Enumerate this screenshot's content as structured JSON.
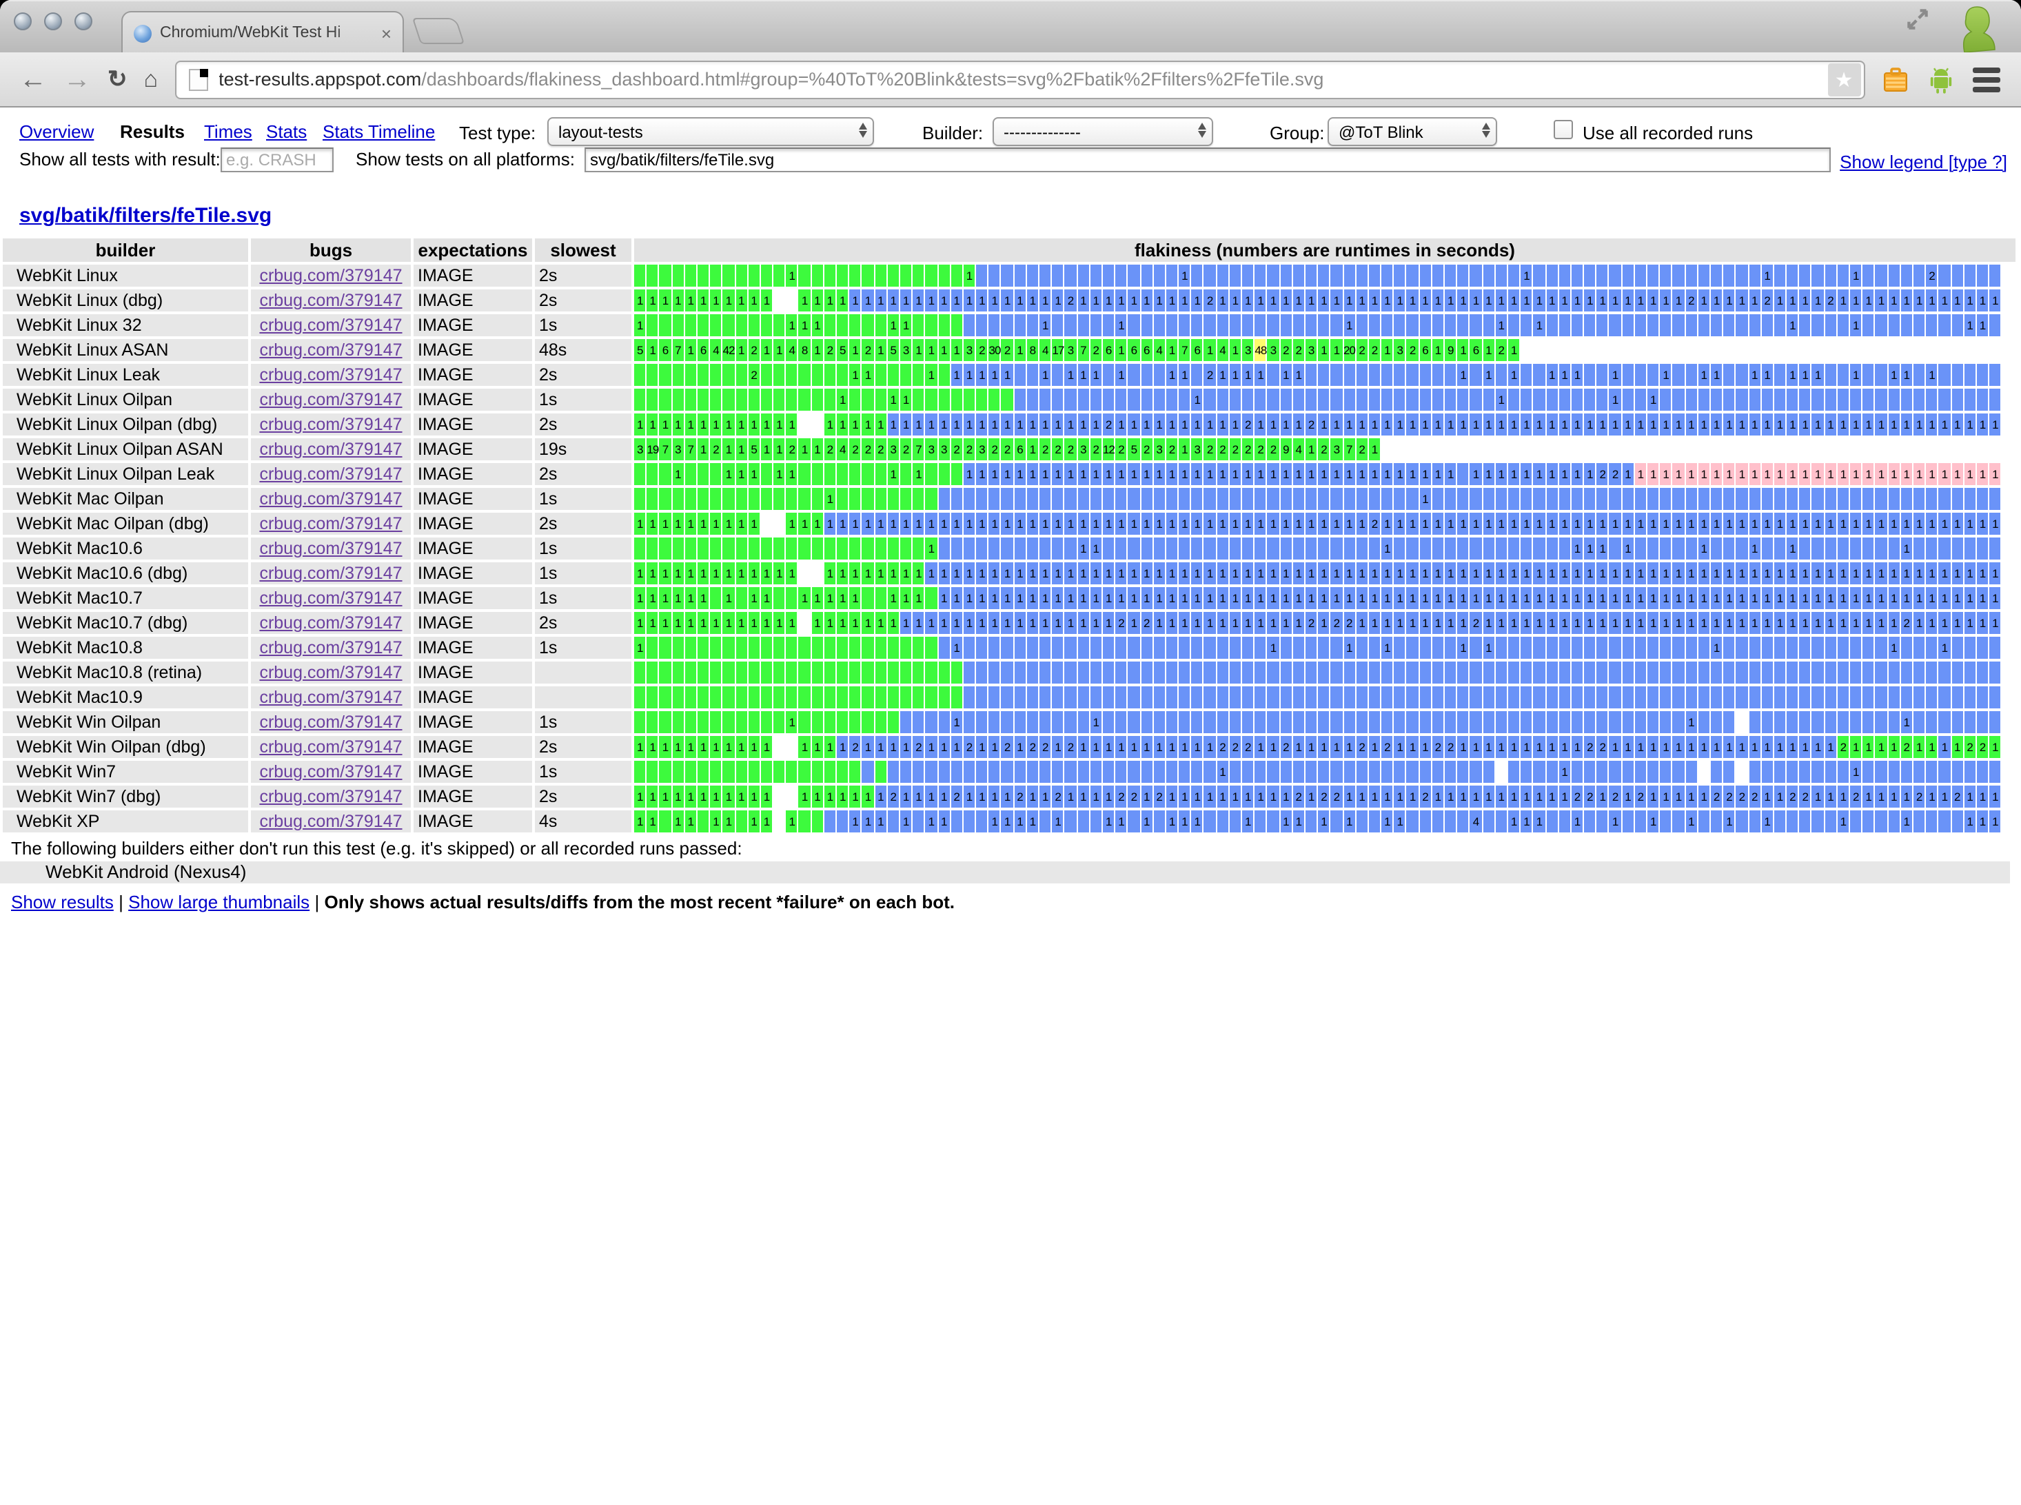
{
  "browser": {
    "tab_title": "Chromium/WebKit Test Hi",
    "tab_close": "×",
    "url_host": "test-results.appspot.com",
    "url_path": "/dashboards/flakiness_dashboard.html#group=%40ToT%20Blink&tests=svg%2Fbatik%2Ffilters%2FfeTile.svg",
    "star_glyph": "★"
  },
  "nav": {
    "items": [
      {
        "label": "Overview"
      },
      {
        "label": "Results"
      },
      {
        "label": "Times"
      },
      {
        "label": "Stats"
      },
      {
        "label": "Stats Timeline"
      }
    ]
  },
  "controls": {
    "test_type_label": "Test type:",
    "test_type_value": "layout-tests",
    "builder_label": "Builder:",
    "builder_value": "--------------",
    "group_label": "Group:",
    "group_value": "@ToT Blink",
    "use_all_label": "Use all recorded runs",
    "filter_label": "Show all tests with result:",
    "filter_placeholder": "e.g. CRASH",
    "platforms_label": "Show tests on all platforms:",
    "platforms_value": "svg/batik/filters/feTile.svg",
    "legend_link": "Show legend [type ?]"
  },
  "page": {
    "title": "svg/batik/filters/feTile.svg"
  },
  "table": {
    "headers": [
      "builder",
      "bugs",
      "expectations",
      "slowest run",
      "flakiness (numbers are runtimes in seconds)"
    ],
    "bug_link": "crbug.com/379147",
    "colors": {
      "g": "#3dfa3d",
      "b": "#6a93f8",
      "p": "#ffc0cb",
      "y": "#fffc6c",
      "w": "transparent"
    },
    "rows": [
      {
        "builder": "WebKit Linux",
        "expectations": "IMAGE",
        "slowest": "2s",
        "cells": "g*12 g:1 g*13 g:1 b b*15 b:1 b*24 b*2 b:1 b*18 b:1 b*6 b:1 b*5 b:2 b*5"
      },
      {
        "builder": "WebKit Linux (dbg)",
        "expectations": "IMAGE",
        "slowest": "2s",
        "cells": "g:1*11 w*2 g:1*4 b:1*11 b:1*6 b:2 b:1*10 b:2 b:1*22 b:1*15 b:2 b:1*5 b:2 b:1*4 b:2 b:1*13"
      },
      {
        "builder": "WebKit Linux 32",
        "expectations": "IMAGE",
        "slowest": "1s",
        "cells": "g:1 g*11 g:1*3 g*5 g:1*2 g*4 b*6 b:1 b*5 b:1 b*17 b:1 b*11 b:1 b*2 b:1 b*19 b:1 b*4 b:1 b*8 b:1*2 b"
      },
      {
        "builder": "WebKit Linux ASAN",
        "expectations": "IMAGE",
        "slowest": "48s",
        "cells": "g:5 g:1 g:6 g:7 g:1 g:6 g:4 g:42 g:1 g:2 g:1 g:1 g:4 g:8 g:1 g:2 g:5 g:1 g:2 g:1 g:5 g:3 g:1 g:1 g:1 g:1 g:3 g:2 g:30 g:2 g:1 g:8 g:4 g:17 g:3 g:7 g:2 g:6 g:1 g:6 g:6 g:4 g:1 g:7 g:6 g:1 g:4 g:1 g:3 y:48 g:3 g:2 g:2 g:3 g:1 g:1 g:20 g:2 g:2 g:1 g:3 g:2 g:6 g:1 g:9 g:1 g:6 g:1 g:2 g:1 w*38"
      },
      {
        "builder": "WebKit Linux Leak",
        "expectations": "IMAGE",
        "slowest": "2s",
        "cells": "g*9 g:2 g*7 g:1*2 g*4 g:1 g b:1*5 b*2 b:1 b b:1*3 b b:1 b*3 b:1*2 b b:2 b:1*4 b b:1*2 b*12 b:1 b b:1 b b:1 b*2 b:1*3 b*2 b:1 b*3 b:1 b*2 b:1*2 b*2 b:1*2 b b:1*3 b*2 b:1 b*2 b:1*2 b b:1 b*5"
      },
      {
        "builder": "WebKit Linux Oilpan",
        "expectations": "IMAGE",
        "slowest": "1s",
        "cells": "g*16 g:1 g*3 g:1*2 g*8 b*14 b:1 b*23 b:1 b*8 b:1 b*2 b:1 b*27"
      },
      {
        "builder": "WebKit Linux Oilpan (dbg)",
        "expectations": "IMAGE",
        "slowest": "2s",
        "cells": "g:1*13 w*2 g:1*5 b:1*17 b:2 b:1*10 b:2 b:1*4 b:2 b:1*54"
      },
      {
        "builder": "WebKit Linux Oilpan ASAN",
        "expectations": "IMAGE",
        "slowest": "19s",
        "cells": "g:3 g:19 g:7 g:3 g:7 g:1 g:2 g:1 g:1 g:5 g:1 g:1 g:2 g:1 g:1 g:2 g:4 g:2 g:2 g:2 g:3 g:2 g:7 g:3 g:3 g:2 g:2 g:3 g:2 g:2 g:6 g:1 g:2 g:2 g:2 g:3 g:2 g:12 g:2 g:5 g:2 g:3 g:2 g:1 g:3 g:2 g:2 g:2 g:2 g:2 g:2 g:9 g:4 g:1 g:2 g:3 g:7 g:2 g:1 w*49"
      },
      {
        "builder": "WebKit Linux Oilpan Leak",
        "expectations": "IMAGE",
        "slowest": "2s",
        "cells": "g*3 g:1 g*3 g:1*3 g g:1*2 g*7 g:1 g g:1 g*3 b:1*10 b:1*29 b b:1*6 b:1*4 b:2*2 b:1 p:1*29"
      },
      {
        "builder": "WebKit Mac Oilpan",
        "expectations": "IMAGE",
        "slowest": "1s",
        "cells": "g*15 g:1 g*8 b*38 b:1 b*45"
      },
      {
        "builder": "WebKit Mac Oilpan (dbg)",
        "expectations": "IMAGE",
        "slowest": "2s",
        "cells": "g:1*10 w*2 g:1*3 b:1*43 b:2 b:1*49"
      },
      {
        "builder": "WebKit Mac10.6",
        "expectations": "IMAGE",
        "slowest": "1s",
        "cells": "g*23 g:1 b*11 b:1 b:1 b*22 b:1 b*14 b:1*3 b b:1 b*5 b:1 b*3 b:1 b*2 b:1 b*8 b:1 b*7"
      },
      {
        "builder": "WebKit Mac10.6 (dbg)",
        "expectations": "IMAGE",
        "slowest": "1s",
        "cells": "g:1*13 w*2 g:1*8 b:1*85"
      },
      {
        "builder": "WebKit Mac10.7",
        "expectations": "IMAGE",
        "slowest": "1s",
        "cells": "g:1*6 g g:1 g g:1*2 g*2 g:1*5 g*2 g:1*3 g b:1*84"
      },
      {
        "builder": "WebKit Mac10.7 (dbg)",
        "expectations": "IMAGE",
        "slowest": "2s",
        "cells": "g:1*13 w g:1*7 b:1*17 b:2 b:1 b:2 b:1*12 b:2 b:1 b:2*2 b:1*9 b:2 b:1*33 b:2 b:1*7"
      },
      {
        "builder": "WebKit Mac10.8",
        "expectations": "IMAGE",
        "slowest": "1s",
        "cells": "g:1 g*23 b b:1 b*24 b:1 b*5 b:1 b*2 b:1 b*5 b:1 b b:1 b*17 b:1 b*13 b:1 b*3 b:1 b*4"
      },
      {
        "builder": "WebKit Mac10.8 (retina)",
        "expectations": "IMAGE",
        "slowest": "",
        "cells": "g*26 b*82"
      },
      {
        "builder": "WebKit Mac10.9",
        "expectations": "IMAGE",
        "slowest": "",
        "cells": "g*26 b*82"
      },
      {
        "builder": "WebKit Win Oilpan",
        "expectations": "IMAGE",
        "slowest": "1s",
        "cells": "g*12 g:1 g*8 b*4 b:1 b*10 b:1 b*46 b:1 b*3 w b*12 b:1 b*7"
      },
      {
        "builder": "WebKit Win Oilpan (dbg)",
        "expectations": "IMAGE",
        "slowest": "2s",
        "cells": "g:1*11 w*2 g:1*3 b:1 b:2 b:1*4 b:2 b:1*3 b:2 b:1*2 b:2 b:1 b:2*2 b:1 b:2 b:1*11 b:2*3 b:1*2 b:2 b:1*5 b:2 b:1 b:2 b:1*3 b:2*2 b:1*10 b:2*2 b:1*18 g:2 g:1*4 g:2 g:1*2 b:1 g:1 g:2*2 g:1"
      },
      {
        "builder": "WebKit Win7",
        "expectations": "IMAGE",
        "slowest": "1s",
        "cells": "g*18 b g b*26 b:1 b*21 w b*4 b:1 b*10 w b*2 w b*8 b:1 b*11"
      },
      {
        "builder": "WebKit Win7 (dbg)",
        "expectations": "IMAGE",
        "slowest": "2s",
        "cells": "g:1*11 w*2 g:1*6 b:1 b:2 b:1*4 b:2 b:1*4 b:2 b:1*2 b:2 b:1*4 b:2*2 b:1 b:2 b:1*10 b:2 b:1 b:2*2 b:1*6 b:2 b:1*11 b:2*2 b:1 b:2 b:1 b:2 b:1*5 b:2*4 b:1*2 b:2*2 b:1*3 b:2 b:1*4 b:2 b:1*2 b:2 b:1*3"
      },
      {
        "builder": "WebKit XP",
        "expectations": "IMAGE",
        "slowest": "4s",
        "cells": "g:1*2 g g:1*2 g g:1*2 g g:1*2 w g:1 g*2 b*2 b:1*3 b b:1 b b:1*2 b*3 b:1*4 b b:1 b*2 b b:1*2 b b:1 b b:1*3 b*3 b:1 b*2 b:1*2 b b:1 b b:1 b*2 b:1*2 b*5 b:4 b*2 b:1*3 b*2 b:1 b*2 b:1 b*2 b:1 b*2 b:1 b*2 b:1 b*2 b:1 b*5 b:1 b*4 b:1 b*4 b:1*3"
      }
    ]
  },
  "footer": {
    "note": "The following builders either don't run this test (e.g. it's skipped) or all recorded runs passed:",
    "skipped_builder": "WebKit Android (Nexus4)",
    "link_results": "Show results",
    "separator": "|",
    "link_thumbs": "Show large thumbnails",
    "bold_note": "Only shows actual results/diffs from the most recent *failure* on each bot."
  }
}
